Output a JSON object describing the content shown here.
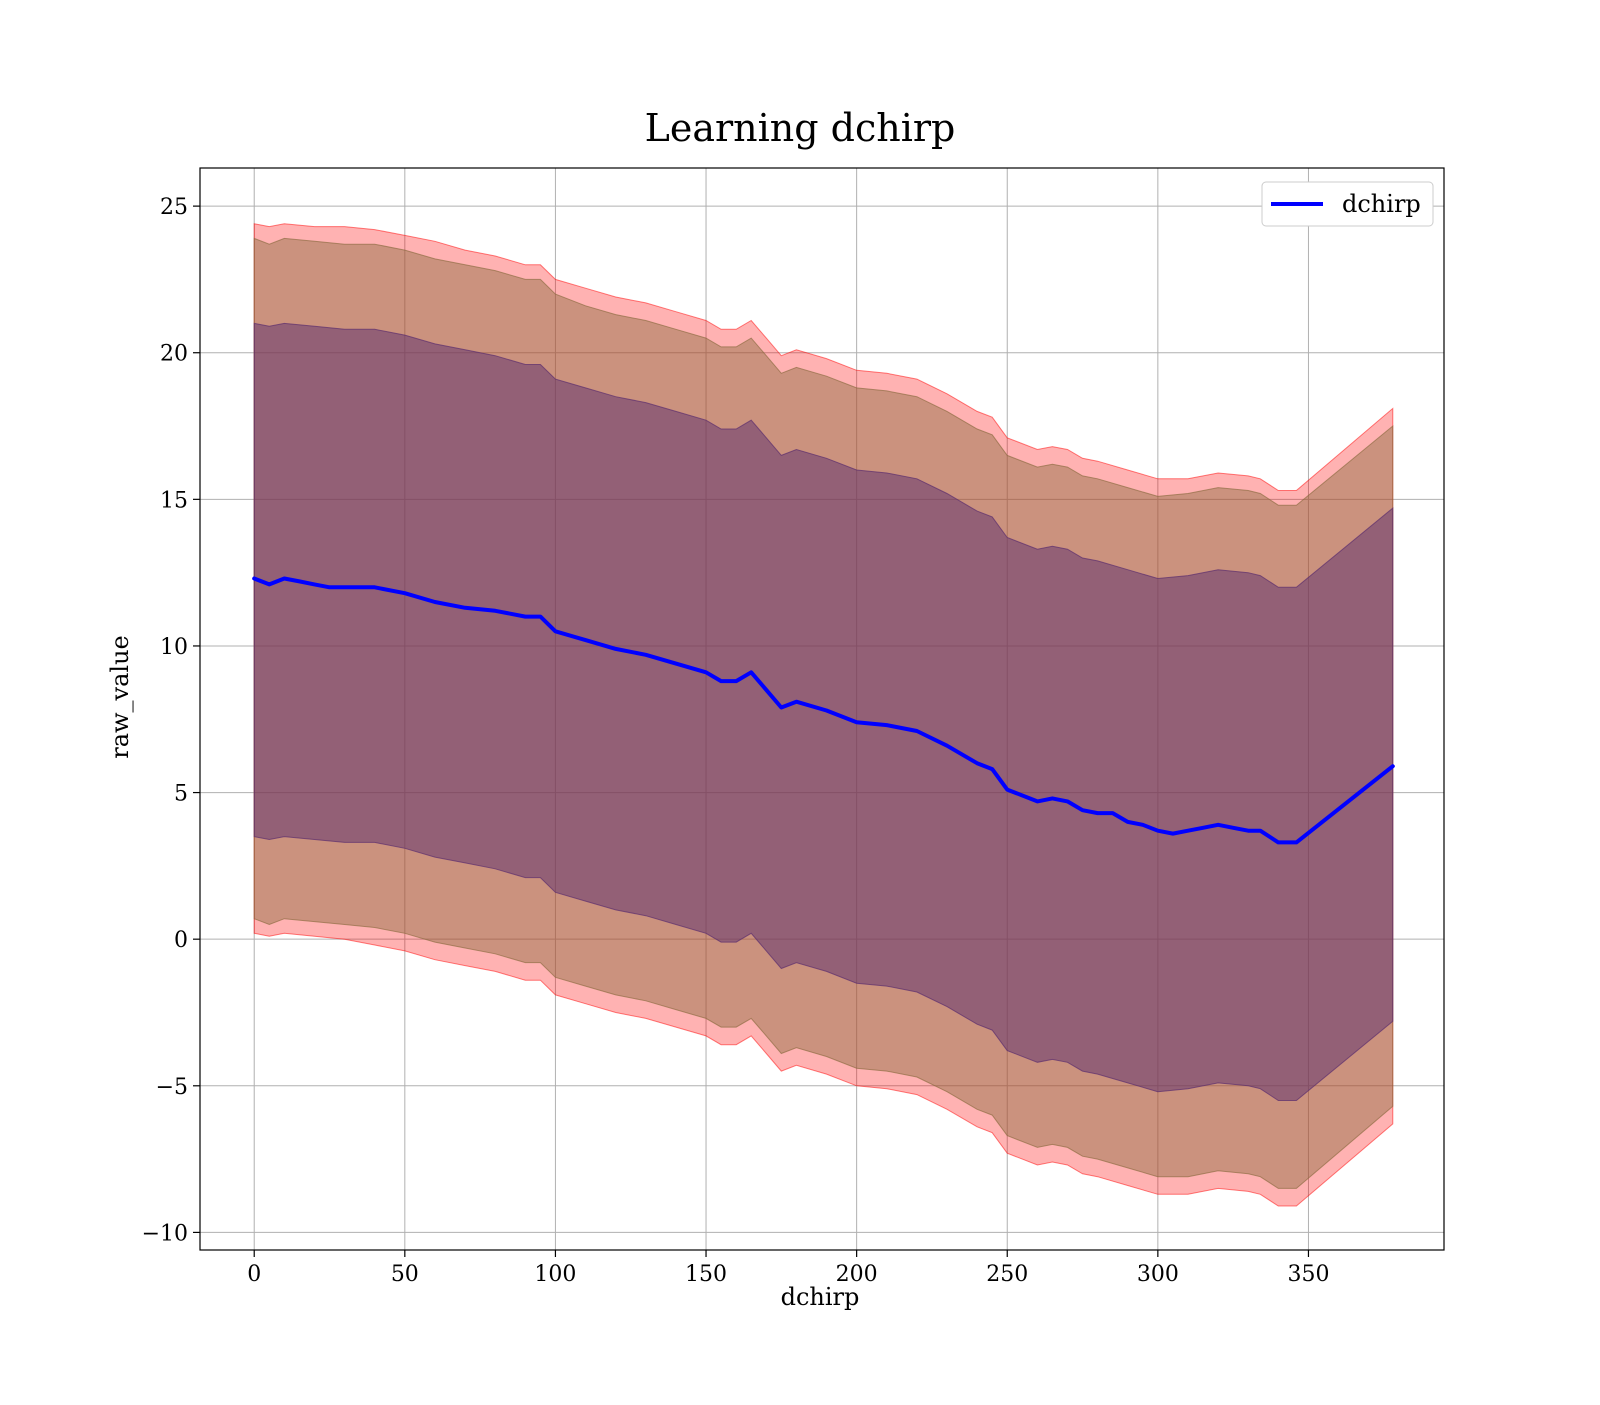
{
  "chart_data": {
    "type": "line",
    "title": "Learning dchirp",
    "xlabel": "dchirp",
    "ylabel": "raw_value",
    "xlim": [
      -18,
      395
    ],
    "ylim": [
      -10.6,
      26.3
    ],
    "xticks": [
      0,
      50,
      100,
      150,
      200,
      250,
      300,
      350
    ],
    "yticks": [
      -10,
      -5,
      0,
      5,
      10,
      15,
      20,
      25
    ],
    "xtick_labels": [
      "0",
      "50",
      "100",
      "150",
      "200",
      "250",
      "300",
      "350"
    ],
    "ytick_labels": [
      "−10",
      "−5",
      "0",
      "5",
      "10",
      "15",
      "20",
      "25"
    ],
    "grid": true,
    "legend_position": "top-right",
    "series": [
      {
        "name": "dchirp",
        "color": "#0000ff",
        "x": [
          0,
          5,
          10,
          15,
          20,
          25,
          30,
          40,
          50,
          60,
          70,
          80,
          90,
          95,
          100,
          110,
          120,
          130,
          140,
          150,
          155,
          160,
          165,
          170,
          175,
          180,
          190,
          200,
          210,
          220,
          230,
          240,
          245,
          250,
          260,
          265,
          270,
          275,
          280,
          285,
          290,
          295,
          300,
          305,
          310,
          315,
          320,
          325,
          330,
          334,
          340,
          346,
          378
        ],
        "values": [
          12.3,
          12.1,
          12.3,
          12.2,
          12.1,
          12.0,
          12.0,
          12.0,
          11.8,
          11.5,
          11.3,
          11.2,
          11.0,
          11.0,
          10.5,
          10.2,
          9.9,
          9.7,
          9.4,
          9.1,
          8.8,
          8.8,
          9.1,
          8.5,
          7.9,
          8.1,
          7.8,
          7.4,
          7.3,
          7.1,
          6.6,
          6.0,
          5.8,
          5.1,
          4.7,
          4.8,
          4.7,
          4.4,
          4.3,
          4.3,
          4.0,
          3.9,
          3.7,
          3.6,
          3.7,
          3.8,
          3.9,
          3.8,
          3.7,
          3.7,
          3.3,
          3.3,
          5.9
        ]
      }
    ],
    "bands": [
      {
        "color": "#ff0000",
        "opacity": 0.3,
        "x": [
          0,
          5,
          10,
          20,
          30,
          40,
          50,
          60,
          70,
          80,
          90,
          95,
          100,
          110,
          120,
          130,
          140,
          150,
          155,
          160,
          165,
          170,
          175,
          180,
          190,
          200,
          210,
          220,
          230,
          240,
          245,
          250,
          260,
          265,
          270,
          275,
          280,
          290,
          300,
          310,
          320,
          330,
          334,
          340,
          346,
          378
        ],
        "upper": [
          24.4,
          24.3,
          24.4,
          24.3,
          24.3,
          24.2,
          24.0,
          23.8,
          23.5,
          23.3,
          23.0,
          23.0,
          22.5,
          22.2,
          21.9,
          21.7,
          21.4,
          21.1,
          20.8,
          20.8,
          21.1,
          20.5,
          19.9,
          20.1,
          19.8,
          19.4,
          19.3,
          19.1,
          18.6,
          18.0,
          17.8,
          17.1,
          16.7,
          16.8,
          16.7,
          16.4,
          16.3,
          16.0,
          15.7,
          15.7,
          15.9,
          15.8,
          15.7,
          15.3,
          15.3,
          18.1
        ],
        "lower": [
          0.2,
          0.1,
          0.2,
          0.1,
          0.0,
          -0.2,
          -0.4,
          -0.7,
          -0.9,
          -1.1,
          -1.4,
          -1.4,
          -1.9,
          -2.2,
          -2.5,
          -2.7,
          -3.0,
          -3.3,
          -3.6,
          -3.6,
          -3.3,
          -3.9,
          -4.5,
          -4.3,
          -4.6,
          -5.0,
          -5.1,
          -5.3,
          -5.8,
          -6.4,
          -6.6,
          -7.3,
          -7.7,
          -7.6,
          -7.7,
          -8.0,
          -8.1,
          -8.4,
          -8.7,
          -8.7,
          -8.5,
          -8.6,
          -8.7,
          -9.1,
          -9.1,
          -6.3
        ]
      },
      {
        "color": "#8b6a3f",
        "opacity": 0.45,
        "x": [
          0,
          5,
          10,
          20,
          30,
          40,
          50,
          60,
          70,
          80,
          90,
          95,
          100,
          110,
          120,
          130,
          140,
          150,
          155,
          160,
          165,
          170,
          175,
          180,
          190,
          200,
          210,
          220,
          230,
          240,
          245,
          250,
          260,
          265,
          270,
          275,
          280,
          290,
          300,
          310,
          320,
          330,
          334,
          340,
          346,
          378
        ],
        "upper": [
          23.9,
          23.7,
          23.9,
          23.8,
          23.7,
          23.7,
          23.5,
          23.2,
          23.0,
          22.8,
          22.5,
          22.5,
          22.0,
          21.6,
          21.3,
          21.1,
          20.8,
          20.5,
          20.2,
          20.2,
          20.5,
          19.9,
          19.3,
          19.5,
          19.2,
          18.8,
          18.7,
          18.5,
          18.0,
          17.4,
          17.2,
          16.5,
          16.1,
          16.2,
          16.1,
          15.8,
          15.7,
          15.4,
          15.1,
          15.2,
          15.4,
          15.3,
          15.2,
          14.8,
          14.8,
          17.5
        ],
        "lower": [
          0.7,
          0.5,
          0.7,
          0.6,
          0.5,
          0.4,
          0.2,
          -0.1,
          -0.3,
          -0.5,
          -0.8,
          -0.8,
          -1.3,
          -1.6,
          -1.9,
          -2.1,
          -2.4,
          -2.7,
          -3.0,
          -3.0,
          -2.7,
          -3.3,
          -3.9,
          -3.7,
          -4.0,
          -4.4,
          -4.5,
          -4.7,
          -5.2,
          -5.8,
          -6.0,
          -6.7,
          -7.1,
          -7.0,
          -7.1,
          -7.4,
          -7.5,
          -7.8,
          -8.1,
          -8.1,
          -7.9,
          -8.0,
          -8.1,
          -8.5,
          -8.5,
          -5.7
        ]
      },
      {
        "color": "#5b2e6e",
        "opacity": 0.5,
        "x": [
          0,
          5,
          10,
          20,
          30,
          40,
          50,
          60,
          70,
          80,
          90,
          95,
          100,
          110,
          120,
          130,
          140,
          150,
          155,
          160,
          165,
          170,
          175,
          180,
          190,
          200,
          210,
          220,
          230,
          240,
          245,
          250,
          260,
          265,
          270,
          275,
          280,
          290,
          300,
          310,
          320,
          330,
          334,
          340,
          346,
          378
        ],
        "upper": [
          21.0,
          20.9,
          21.0,
          20.9,
          20.8,
          20.8,
          20.6,
          20.3,
          20.1,
          19.9,
          19.6,
          19.6,
          19.1,
          18.8,
          18.5,
          18.3,
          18.0,
          17.7,
          17.4,
          17.4,
          17.7,
          17.1,
          16.5,
          16.7,
          16.4,
          16.0,
          15.9,
          15.7,
          15.2,
          14.6,
          14.4,
          13.7,
          13.3,
          13.4,
          13.3,
          13.0,
          12.9,
          12.6,
          12.3,
          12.4,
          12.6,
          12.5,
          12.4,
          12.0,
          12.0,
          14.7
        ],
        "lower": [
          3.5,
          3.4,
          3.5,
          3.4,
          3.3,
          3.3,
          3.1,
          2.8,
          2.6,
          2.4,
          2.1,
          2.1,
          1.6,
          1.3,
          1.0,
          0.8,
          0.5,
          0.2,
          -0.1,
          -0.1,
          0.2,
          -0.4,
          -1.0,
          -0.8,
          -1.1,
          -1.5,
          -1.6,
          -1.8,
          -2.3,
          -2.9,
          -3.1,
          -3.8,
          -4.2,
          -4.1,
          -4.2,
          -4.5,
          -4.6,
          -4.9,
          -5.2,
          -5.1,
          -4.9,
          -5.0,
          -5.1,
          -5.5,
          -5.5,
          -2.8
        ]
      }
    ]
  }
}
